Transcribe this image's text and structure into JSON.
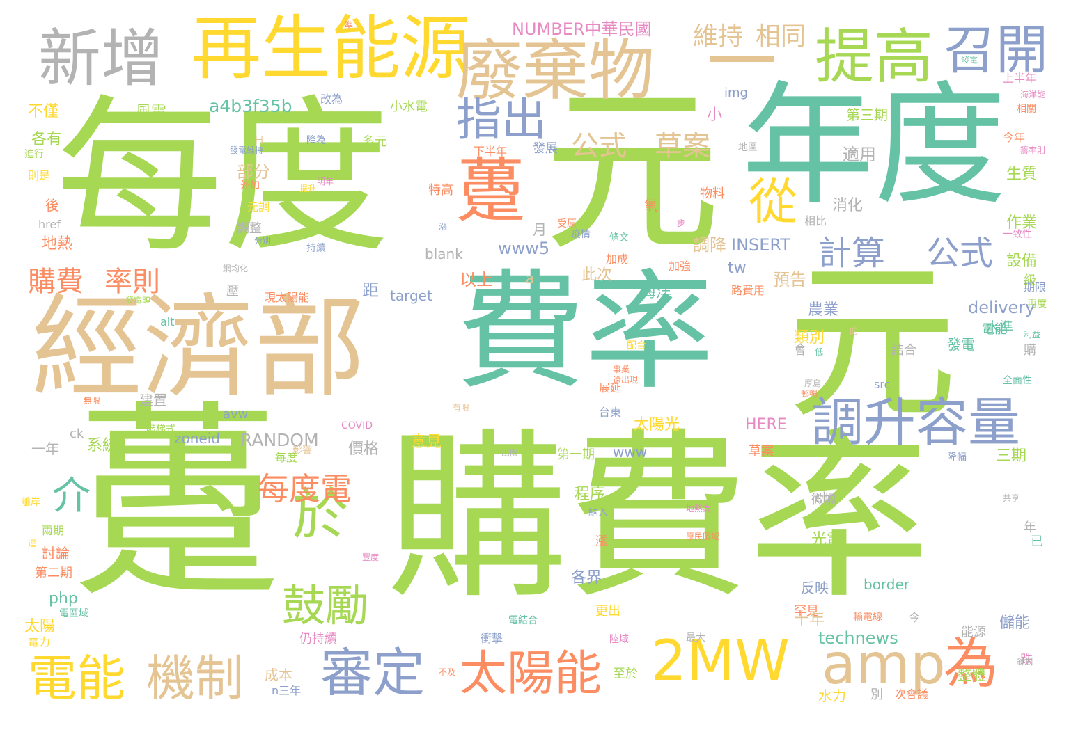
{
  "colors": {
    "green": "#a6d854",
    "teal": "#66c2a5",
    "tan": "#e5c494",
    "yellow": "#ffd92f",
    "orange": "#fc8d62",
    "blue": "#8da0cb",
    "gray": "#b3b3b3",
    "pink": "#e78ac3"
  },
  "words": [
    {
      "text": "每度",
      "color": "green"
    },
    {
      "text": "元",
      "color": "green"
    },
    {
      "text": "年度",
      "color": "teal"
    },
    {
      "text": "元",
      "color": "green"
    },
    {
      "text": "費率",
      "color": "teal"
    },
    {
      "text": "躉",
      "color": "green"
    },
    {
      "text": "購費率",
      "color": "green"
    },
    {
      "text": "經濟部",
      "color": "tan"
    },
    {
      "text": "再生能源",
      "color": "yellow"
    },
    {
      "text": "新增",
      "color": "gray"
    },
    {
      "text": "廢棄物",
      "color": "tan"
    },
    {
      "text": "一",
      "color": "tan"
    },
    {
      "text": "提高",
      "color": "green"
    },
    {
      "text": "召開",
      "color": "blue"
    },
    {
      "text": "躉",
      "color": "orange"
    },
    {
      "text": "指出",
      "color": "blue"
    },
    {
      "text": "從",
      "color": "yellow"
    },
    {
      "text": "調升容量",
      "color": "blue"
    },
    {
      "text": "於",
      "color": "green"
    },
    {
      "text": "鼓勵",
      "color": "green"
    },
    {
      "text": "審定",
      "color": "blue"
    },
    {
      "text": "太陽能",
      "color": "orange"
    },
    {
      "text": "2MW",
      "color": "yellow"
    },
    {
      "text": "amp",
      "color": "tan"
    },
    {
      "text": "為",
      "color": "orange"
    },
    {
      "text": "電能",
      "color": "yellow"
    },
    {
      "text": "機制",
      "color": "tan"
    },
    {
      "text": "每度電",
      "color": "orange"
    },
    {
      "text": "介",
      "color": "teal"
    },
    {
      "text": "計算",
      "color": "blue"
    },
    {
      "text": "公式",
      "color": "blue"
    },
    {
      "text": "公式",
      "color": "tan"
    },
    {
      "text": "草案",
      "color": "tan"
    },
    {
      "text": "維持",
      "color": "tan"
    },
    {
      "text": "相同",
      "color": "tan"
    },
    {
      "text": "購費",
      "color": "orange"
    },
    {
      "text": "率則",
      "color": "orange"
    },
    {
      "text": "a4b3f35b",
      "color": "teal"
    },
    {
      "text": "NUMBER中華民國",
      "color": "pink"
    },
    {
      "text": "RANDOM",
      "color": "gray"
    },
    {
      "text": "technews",
      "color": "teal"
    },
    {
      "text": "delivery",
      "color": "blue"
    },
    {
      "text": "INSERT",
      "color": "blue"
    },
    {
      "text": "www5",
      "color": "blue"
    },
    {
      "text": "風電",
      "color": "green"
    },
    {
      "text": "不僅",
      "color": "yellow"
    },
    {
      "text": "各有",
      "color": "green"
    },
    {
      "text": "部分",
      "color": "tan"
    },
    {
      "text": "地熱",
      "color": "orange"
    },
    {
      "text": "以上",
      "color": "orange"
    },
    {
      "text": "此次",
      "color": "tan"
    },
    {
      "text": "預告",
      "color": "tan"
    },
    {
      "text": "調降",
      "color": "tan"
    },
    {
      "text": "消化",
      "color": "gray"
    },
    {
      "text": "適用",
      "color": "gray"
    },
    {
      "text": "第三期",
      "color": "green"
    },
    {
      "text": "生質",
      "color": "green"
    },
    {
      "text": "作業",
      "color": "green"
    },
    {
      "text": "設備",
      "color": "green"
    },
    {
      "text": "海洋",
      "color": "teal"
    },
    {
      "text": "農業",
      "color": "blue"
    },
    {
      "text": "類別",
      "color": "yellow"
    },
    {
      "text": "水準",
      "color": "teal"
    },
    {
      "text": "結合",
      "color": "gray"
    },
    {
      "text": "發電",
      "color": "teal"
    },
    {
      "text": "太陽光",
      "color": "yellow"
    },
    {
      "text": "HERE",
      "color": "pink"
    },
    {
      "text": "價格",
      "color": "gray"
    },
    {
      "text": "意見",
      "color": "yellow"
    },
    {
      "text": "一年",
      "color": "gray"
    },
    {
      "text": "系統",
      "color": "green"
    },
    {
      "text": "建置",
      "color": "gray"
    },
    {
      "text": "程序",
      "color": "green"
    },
    {
      "text": "第一期",
      "color": "green"
    },
    {
      "text": "三期",
      "color": "green"
    },
    {
      "text": "光電",
      "color": "green"
    },
    {
      "text": "各界",
      "color": "blue"
    },
    {
      "text": "反映",
      "color": "blue"
    },
    {
      "text": "罕見",
      "color": "orange"
    },
    {
      "text": "十年",
      "color": "tan"
    },
    {
      "text": "儲能",
      "color": "blue"
    },
    {
      "text": "能源",
      "color": "gray"
    },
    {
      "text": "討論",
      "color": "orange"
    },
    {
      "text": "第二期",
      "color": "orange"
    },
    {
      "text": "兩期",
      "color": "green"
    },
    {
      "text": "太陽",
      "color": "yellow"
    },
    {
      "text": "php",
      "color": "teal"
    },
    {
      "text": "成本",
      "color": "tan"
    },
    {
      "text": "水力",
      "color": "yellow"
    },
    {
      "text": "整體",
      "color": "green"
    },
    {
      "text": "更出",
      "color": "yellow"
    },
    {
      "text": "仍持續",
      "color": "pink"
    },
    {
      "text": "微幅",
      "color": "gray"
    },
    {
      "text": "border",
      "color": "teal"
    },
    {
      "text": "zoneid",
      "color": "blue"
    },
    {
      "text": "www",
      "color": "blue"
    },
    {
      "text": "avw",
      "color": "blue"
    },
    {
      "text": "img",
      "color": "blue"
    },
    {
      "text": "blank",
      "color": "gray"
    },
    {
      "text": "target",
      "color": "blue"
    },
    {
      "text": "href",
      "color": "gray"
    },
    {
      "text": "tw",
      "color": "blue"
    },
    {
      "text": "cb",
      "color": "gray"
    },
    {
      "text": "src",
      "color": "blue"
    },
    {
      "text": "ck",
      "color": "gray"
    },
    {
      "text": "alt",
      "color": "teal"
    },
    {
      "text": "a",
      "color": "tan"
    },
    {
      "text": "小水電",
      "color": "green"
    },
    {
      "text": "改為",
      "color": "blue"
    },
    {
      "text": "多元",
      "color": "green"
    },
    {
      "text": "特高",
      "color": "orange"
    },
    {
      "text": "下半年",
      "color": "orange"
    },
    {
      "text": "發展",
      "color": "blue"
    },
    {
      "text": "氧",
      "color": "orange"
    },
    {
      "text": "月",
      "color": "gray"
    },
    {
      "text": "小",
      "color": "pink"
    },
    {
      "text": "物料",
      "color": "orange"
    },
    {
      "text": "上半年",
      "color": "pink"
    },
    {
      "text": "今年",
      "color": "orange"
    },
    {
      "text": "距",
      "color": "blue"
    },
    {
      "text": "後",
      "color": "orange"
    },
    {
      "text": "調整",
      "color": "gray"
    },
    {
      "text": "元調",
      "color": "yellow"
    },
    {
      "text": "電能",
      "color": "teal"
    },
    {
      "text": "跌",
      "color": "pink"
    },
    {
      "text": "別",
      "color": "gray"
    },
    {
      "text": "次會議",
      "color": "orange"
    },
    {
      "text": "至於",
      "color": "green"
    },
    {
      "text": "衝擊",
      "color": "blue"
    },
    {
      "text": "電力",
      "color": "yellow"
    },
    {
      "text": "今",
      "color": "gray"
    },
    {
      "text": "年",
      "color": "gray"
    },
    {
      "text": "已",
      "color": "teal"
    },
    {
      "text": "購",
      "color": "gray"
    },
    {
      "text": "級",
      "color": "green"
    },
    {
      "text": "會",
      "color": "gray"
    },
    {
      "text": "相比",
      "color": "gray"
    },
    {
      "text": "漲",
      "color": "orange"
    },
    {
      "text": "壓",
      "color": "gray"
    },
    {
      "text": "現太陽能",
      "color": "orange"
    },
    {
      "text": "路費用",
      "color": "orange"
    },
    {
      "text": "持續",
      "color": "blue"
    },
    {
      "text": "加強",
      "color": "orange"
    },
    {
      "text": "加成",
      "color": "orange"
    },
    {
      "text": "展延",
      "color": "orange"
    },
    {
      "text": "影響",
      "color": "tan"
    },
    {
      "text": "台東",
      "color": "blue"
    },
    {
      "text": "陸域",
      "color": "pink"
    },
    {
      "text": "最大",
      "color": "gray"
    },
    {
      "text": "電結合",
      "color": "teal"
    },
    {
      "text": "輸電線",
      "color": "orange"
    },
    {
      "text": "每度",
      "color": "green"
    },
    {
      "text": "草案",
      "color": "orange"
    },
    {
      "text": "期限",
      "color": "blue"
    },
    {
      "text": "再度",
      "color": "green"
    },
    {
      "text": "一致性",
      "color": "pink"
    },
    {
      "text": "相關",
      "color": "orange"
    },
    {
      "text": "進行",
      "color": "green"
    },
    {
      "text": "則是",
      "color": "yellow"
    },
    {
      "text": "外加",
      "color": "orange"
    },
    {
      "text": "日",
      "color": "tan"
    },
    {
      "text": "受原",
      "color": "orange"
    },
    {
      "text": "疫情",
      "color": "blue"
    },
    {
      "text": "地區",
      "color": "gray"
    },
    {
      "text": "降為",
      "color": "blue"
    },
    {
      "text": "發電維持",
      "color": "blue"
    },
    {
      "text": "COVID",
      "color": "pink"
    },
    {
      "text": "電區域",
      "color": "teal"
    },
    {
      "text": "離岸",
      "color": "yellow"
    },
    {
      "text": "階梯式",
      "color": "green"
    },
    {
      "text": "配合",
      "color": "yellow"
    },
    {
      "text": "納入",
      "color": "blue"
    },
    {
      "text": "n三年",
      "color": "blue"
    },
    {
      "text": "全面性",
      "color": "teal"
    },
    {
      "text": "降幅",
      "color": "blue"
    },
    {
      "text": "針對",
      "color": "gray"
    },
    {
      "text": "不及",
      "color": "orange"
    },
    {
      "text": "分別",
      "color": "blue"
    },
    {
      "text": "提升",
      "color": "yellow"
    },
    {
      "text": "明年",
      "color": "pink"
    },
    {
      "text": "網均化",
      "color": "gray"
    },
    {
      "text": "條文",
      "color": "teal"
    },
    {
      "text": "發電",
      "color": "teal"
    },
    {
      "text": "一步",
      "color": "pink"
    },
    {
      "text": "籌率則",
      "color": "pink"
    },
    {
      "text": "海洋能",
      "color": "pink"
    },
    {
      "text": "厚島",
      "color": "gray"
    },
    {
      "text": "郵暢",
      "color": "orange"
    },
    {
      "text": "低",
      "color": "teal"
    },
    {
      "text": "利益",
      "color": "teal"
    },
    {
      "text": "的",
      "color": "tan"
    },
    {
      "text": "共享",
      "color": "gray"
    },
    {
      "text": "原民區域",
      "color": "orange"
    },
    {
      "text": "逕",
      "color": "yellow"
    },
    {
      "text": "豐度",
      "color": "pink"
    },
    {
      "text": "地熱為",
      "color": "pink"
    },
    {
      "text": "有限",
      "color": "tan"
    },
    {
      "text": "無限",
      "color": "orange"
    },
    {
      "text": "出限",
      "color": "gray"
    },
    {
      "text": "漲",
      "color": "blue"
    },
    {
      "text": "事業",
      "color": "orange"
    },
    {
      "text": "還出現",
      "color": "orange"
    },
    {
      "text": "發電頭",
      "color": "green"
    },
    {
      "text": "準",
      "color": "orange"
    }
  ]
}
